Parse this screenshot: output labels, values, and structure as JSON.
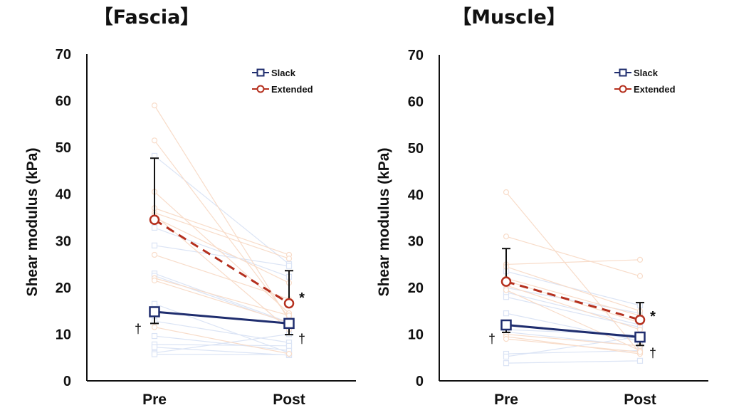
{
  "colors": {
    "slack": "#1f2d6e",
    "extended": "#b5301e",
    "slack_light": "#dbe4f5",
    "extended_light": "#f8dcc9",
    "axis": "#111111"
  },
  "chart_data": [
    {
      "type": "line",
      "title": "【Fascia】",
      "ylabel": "Shear modulus (kPa)",
      "xlabel": "",
      "categories": [
        "Pre",
        "Post"
      ],
      "ylim": [
        0,
        70
      ],
      "yticks": [
        0,
        10,
        20,
        30,
        40,
        50,
        60,
        70
      ],
      "grid": false,
      "legend": {
        "position": "top-right",
        "entries": [
          "Slack",
          "Extended"
        ]
      },
      "series": [
        {
          "name": "Slack",
          "values": [
            14.8,
            12.3
          ],
          "error_low": [
            12.3,
            9.9
          ],
          "line": "solid",
          "marker": "square"
        },
        {
          "name": "Extended",
          "values": [
            34.5,
            16.6
          ],
          "error_high": [
            47.7,
            23.6
          ],
          "line": "dashed",
          "marker": "circle"
        }
      ],
      "individual": {
        "Slack": [
          [
            48.2,
            25.0
          ],
          [
            32.8,
            22.3
          ],
          [
            29.0,
            24.6
          ],
          [
            23.0,
            12.5
          ],
          [
            22.5,
            12.3
          ],
          [
            16.5,
            6.0
          ],
          [
            12.8,
            8.2
          ],
          [
            9.6,
            6.5
          ],
          [
            7.8,
            7.5
          ],
          [
            7.2,
            5.5
          ],
          [
            6.0,
            10.0
          ],
          [
            5.7,
            5.6
          ]
        ],
        "Extended": [
          [
            59.0,
            13.0
          ],
          [
            51.5,
            13.5
          ],
          [
            40.5,
            14.5
          ],
          [
            37.0,
            27.0
          ],
          [
            36.0,
            26.2
          ],
          [
            35.0,
            21.0
          ],
          [
            27.0,
            17.5
          ],
          [
            22.0,
            14.0
          ],
          [
            21.5,
            12.5
          ],
          [
            11.5,
            5.8
          ],
          [
            35.5,
            11.0
          ]
        ]
      },
      "annotations": [
        {
          "text": "†",
          "near": "Slack Pre"
        },
        {
          "text": "*",
          "near": "Extended Post"
        },
        {
          "text": "†",
          "near": "Slack Post"
        }
      ]
    },
    {
      "type": "line",
      "title": "【Muscle】",
      "ylabel": "Shear modulus (kPa)",
      "xlabel": "",
      "categories": [
        "Pre",
        "Post"
      ],
      "ylim": [
        0,
        70
      ],
      "yticks": [
        0,
        10,
        20,
        30,
        40,
        50,
        60,
        70
      ],
      "grid": false,
      "legend": {
        "position": "top-right",
        "entries": [
          "Slack",
          "Extended"
        ]
      },
      "series": [
        {
          "name": "Slack",
          "values": [
            12.0,
            9.4
          ],
          "error_low": [
            10.4,
            7.6
          ],
          "line": "solid",
          "marker": "square"
        },
        {
          "name": "Extended",
          "values": [
            21.3,
            13.1
          ],
          "error_high": [
            28.4,
            16.8
          ],
          "line": "dashed",
          "marker": "circle"
        }
      ],
      "individual": {
        "Slack": [
          [
            23.5,
            16.2
          ],
          [
            20.0,
            14.5
          ],
          [
            19.0,
            12.0
          ],
          [
            18.0,
            11.5
          ],
          [
            14.5,
            8.5
          ],
          [
            11.0,
            9.8
          ],
          [
            10.5,
            7.5
          ],
          [
            5.8,
            6.5
          ],
          [
            5.2,
            9.5
          ],
          [
            3.8,
            4.3
          ]
        ],
        "Extended": [
          [
            40.5,
            6.0
          ],
          [
            31.0,
            22.5
          ],
          [
            25.0,
            26.0
          ],
          [
            24.5,
            15.0
          ],
          [
            22.0,
            14.0
          ],
          [
            21.5,
            12.5
          ],
          [
            20.5,
            11.0
          ],
          [
            19.5,
            6.5
          ],
          [
            10.0,
            7.5
          ],
          [
            9.5,
            5.8
          ],
          [
            9.0,
            6.2
          ]
        ]
      },
      "annotations": [
        {
          "text": "†",
          "near": "Slack Pre"
        },
        {
          "text": "*",
          "near": "Extended Post"
        },
        {
          "text": "†",
          "near": "Slack Post"
        }
      ]
    }
  ]
}
